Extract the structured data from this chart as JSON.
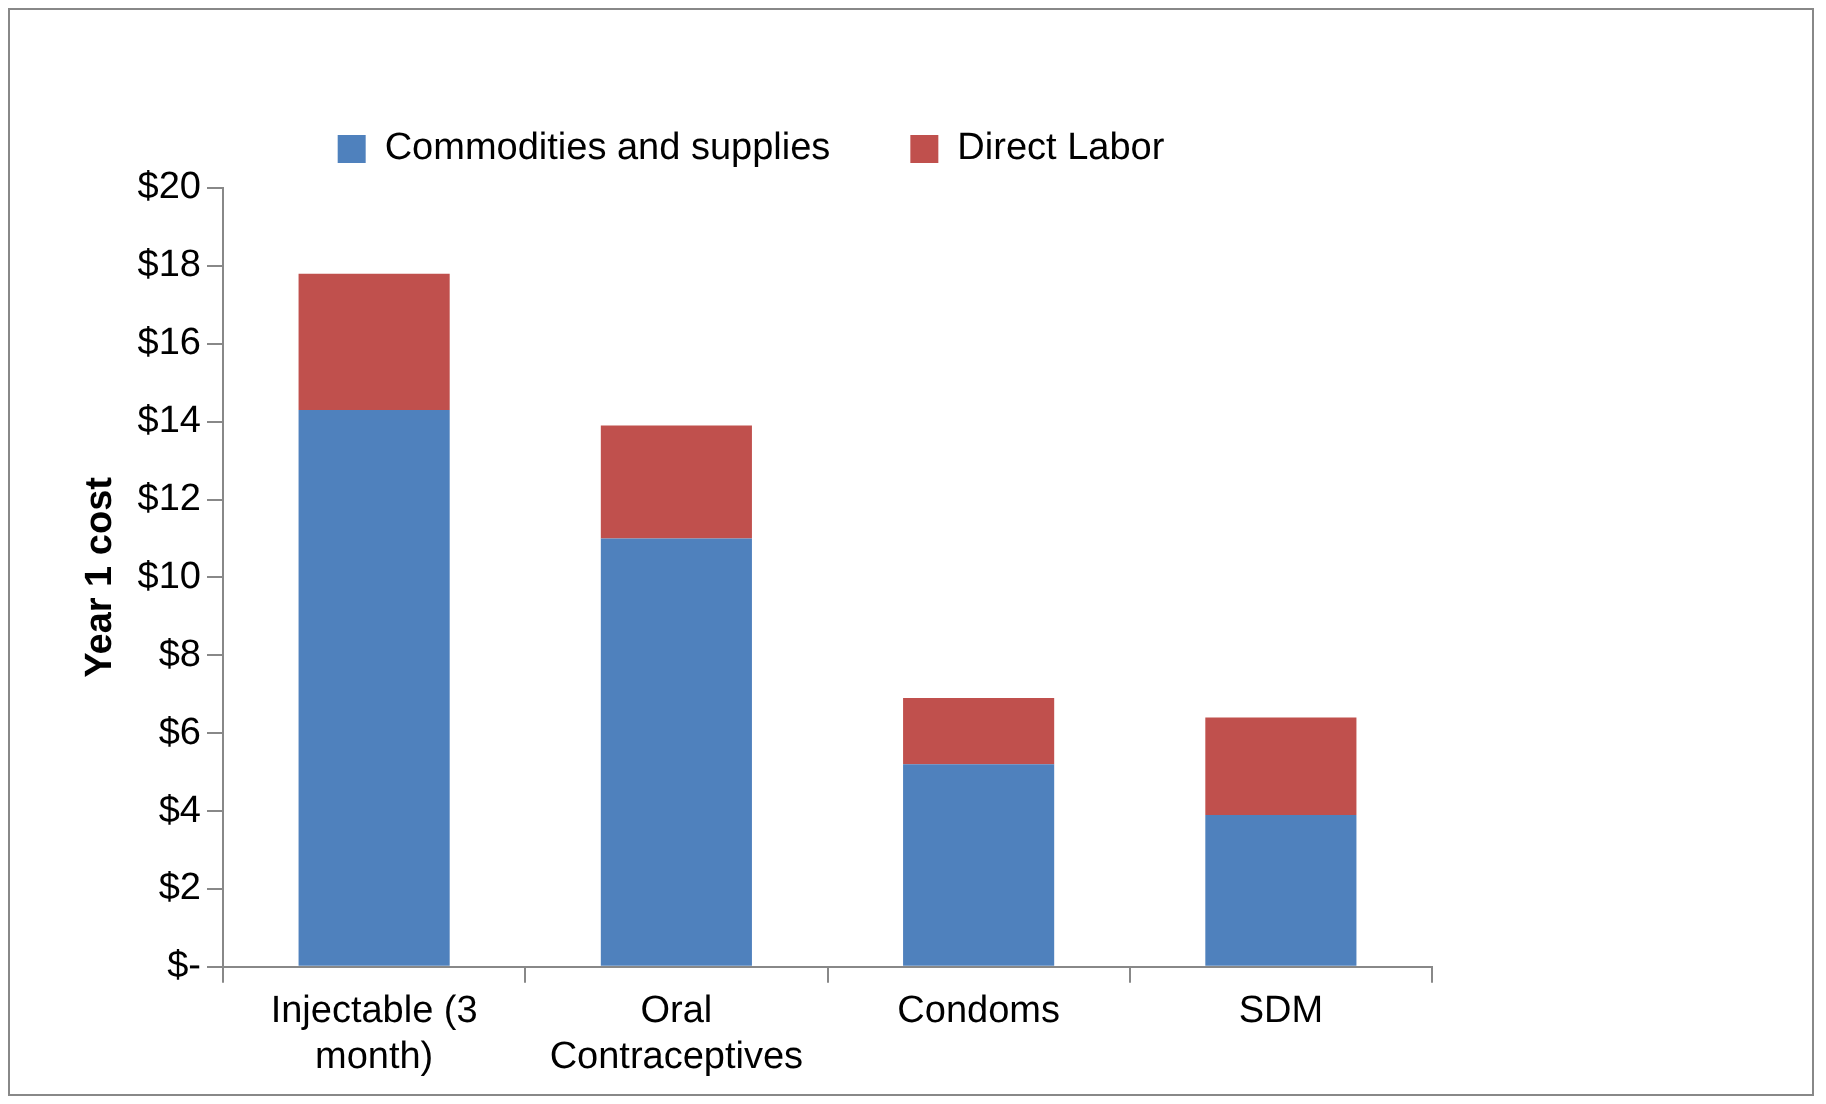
{
  "chart_data": {
    "type": "bar",
    "stacked": true,
    "ylabel": "Year 1 cost",
    "categories": [
      "Injectable (3 month)",
      "Oral Contraceptives",
      "Condoms",
      "SDM"
    ],
    "series": [
      {
        "name": "Commodities and supplies",
        "color": "#4f81bd",
        "values": [
          14.3,
          11.0,
          5.2,
          3.9
        ]
      },
      {
        "name": "Direct Labor",
        "color": "#c0504d",
        "values": [
          3.5,
          2.9,
          1.7,
          2.5
        ]
      }
    ],
    "ylim": [
      0,
      20
    ],
    "yticks": [
      {
        "value": 0,
        "label": "$-"
      },
      {
        "value": 2,
        "label": "$2"
      },
      {
        "value": 4,
        "label": "$4"
      },
      {
        "value": 6,
        "label": "$6"
      },
      {
        "value": 8,
        "label": "$8"
      },
      {
        "value": 10,
        "label": "$10"
      },
      {
        "value": 12,
        "label": "$12"
      },
      {
        "value": 14,
        "label": "$14"
      },
      {
        "value": 16,
        "label": "$16"
      },
      {
        "value": 18,
        "label": "$18"
      },
      {
        "value": 20,
        "label": "$20"
      }
    ],
    "grid": false,
    "legend": "top"
  }
}
